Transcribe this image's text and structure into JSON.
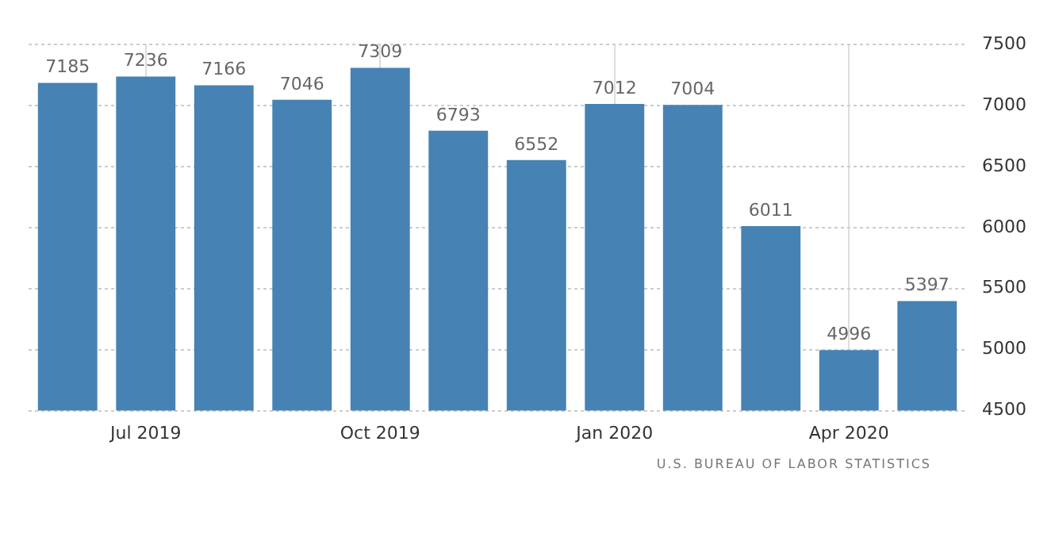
{
  "chart_data": {
    "type": "bar",
    "categories": [
      null,
      "Jul 2019",
      null,
      null,
      "Oct 2019",
      null,
      null,
      "Jan 2020",
      null,
      null,
      "Apr 2020",
      null
    ],
    "values": [
      7185,
      7236,
      7166,
      7046,
      7309,
      6793,
      6552,
      7012,
      7004,
      6011,
      4996,
      5397
    ],
    "color": "#4682b4",
    "ylim": [
      4500,
      7500
    ],
    "yticks": [
      4500,
      5000,
      5500,
      6000,
      6500,
      7000,
      7500
    ],
    "grid": true,
    "data_labels": true,
    "annotations": [
      "U.S. BUREAU OF LABOR STATISTICS"
    ]
  }
}
